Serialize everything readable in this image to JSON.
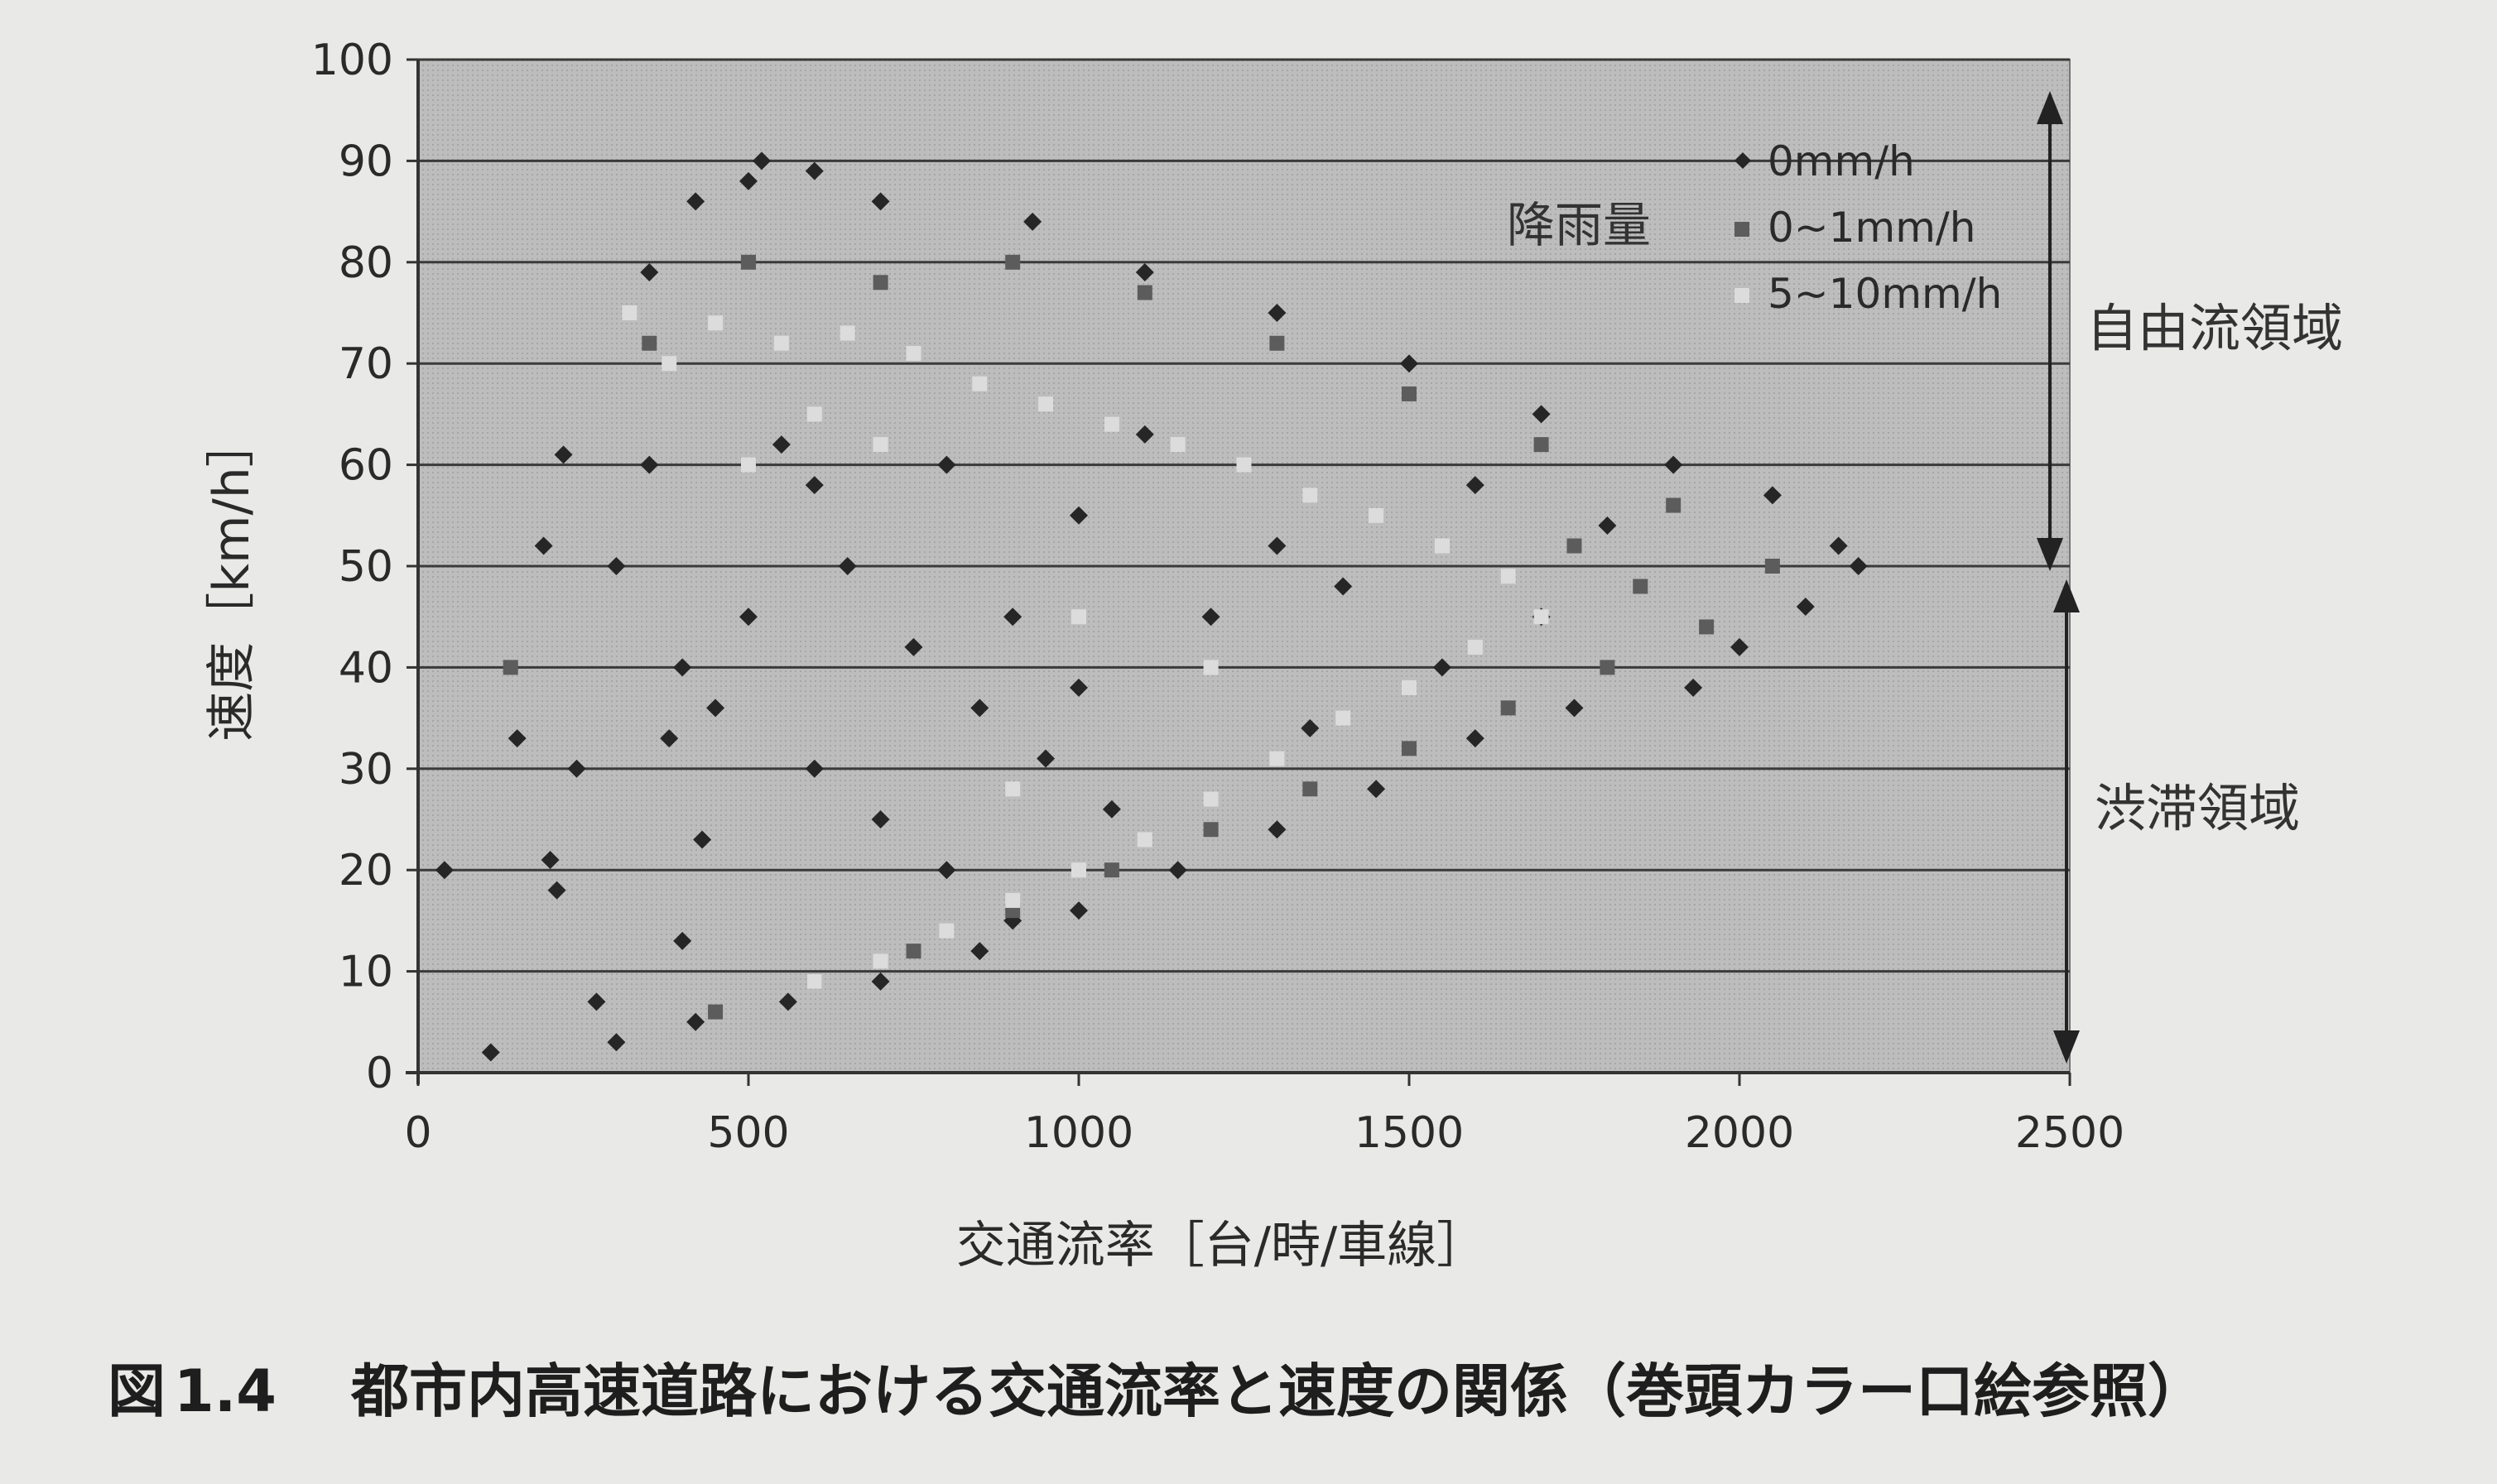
{
  "chart_data": {
    "type": "scatter",
    "xlabel": "交通流率［台/時/車線］",
    "ylabel": "速度［km/h］",
    "xlim": [
      0,
      2500
    ],
    "ylim": [
      0,
      100
    ],
    "x_ticks": [
      "0",
      "500",
      "1000",
      "1500",
      "2000",
      "2500"
    ],
    "y_ticks": [
      "0",
      "10",
      "20",
      "30",
      "40",
      "50",
      "60",
      "70",
      "80",
      "90",
      "100"
    ],
    "grid": "horizontal",
    "legend_title": "降雨量",
    "legend_position": "top-right",
    "series": [
      {
        "name": "0mm/h",
        "color": "#262626",
        "marker": "diamond",
        "points": [
          [
            40,
            20
          ],
          [
            110,
            2
          ],
          [
            150,
            33
          ],
          [
            190,
            52
          ],
          [
            200,
            21
          ],
          [
            210,
            18
          ],
          [
            220,
            61
          ],
          [
            240,
            30
          ],
          [
            270,
            7
          ],
          [
            350,
            79
          ],
          [
            420,
            86
          ],
          [
            500,
            88
          ],
          [
            520,
            90
          ],
          [
            600,
            89
          ],
          [
            700,
            86
          ],
          [
            930,
            84
          ],
          [
            1100,
            79
          ],
          [
            1300,
            75
          ],
          [
            1500,
            70
          ],
          [
            1700,
            65
          ],
          [
            1900,
            60
          ],
          [
            2050,
            57
          ],
          [
            2150,
            52
          ],
          [
            2180,
            50
          ],
          [
            2100,
            46
          ],
          [
            2000,
            42
          ],
          [
            1930,
            38
          ],
          [
            1750,
            36
          ],
          [
            1600,
            33
          ],
          [
            1450,
            28
          ],
          [
            1300,
            24
          ],
          [
            1150,
            20
          ],
          [
            1000,
            16
          ],
          [
            850,
            12
          ],
          [
            700,
            9
          ],
          [
            560,
            7
          ],
          [
            420,
            5
          ],
          [
            300,
            3
          ],
          [
            400,
            40
          ],
          [
            450,
            36
          ],
          [
            380,
            33
          ],
          [
            500,
            45
          ],
          [
            600,
            30
          ],
          [
            700,
            25
          ],
          [
            800,
            20
          ],
          [
            900,
            15
          ],
          [
            550,
            62
          ],
          [
            650,
            50
          ],
          [
            750,
            42
          ],
          [
            850,
            36
          ],
          [
            950,
            31
          ],
          [
            1050,
            26
          ],
          [
            1200,
            45
          ],
          [
            1400,
            48
          ],
          [
            430,
            23
          ],
          [
            400,
            13
          ],
          [
            350,
            60
          ],
          [
            300,
            50
          ],
          [
            600,
            58
          ],
          [
            800,
            60
          ],
          [
            1000,
            55
          ],
          [
            1100,
            63
          ],
          [
            1300,
            52
          ],
          [
            1600,
            58
          ],
          [
            1800,
            54
          ],
          [
            1700,
            45
          ],
          [
            1550,
            40
          ],
          [
            1350,
            34
          ],
          [
            900,
            45
          ],
          [
            1000,
            38
          ]
        ]
      },
      {
        "name": "0~1mm/h",
        "color": "#5c5c5c",
        "marker": "square",
        "points": [
          [
            140,
            40
          ],
          [
            900,
            80
          ],
          [
            1100,
            77
          ],
          [
            1300,
            72
          ],
          [
            1500,
            67
          ],
          [
            1700,
            62
          ],
          [
            1900,
            56
          ],
          [
            2050,
            50
          ],
          [
            1950,
            44
          ],
          [
            1800,
            40
          ],
          [
            1650,
            36
          ],
          [
            1500,
            32
          ],
          [
            1350,
            28
          ],
          [
            1200,
            24
          ],
          [
            1050,
            20
          ],
          [
            900,
            16
          ],
          [
            750,
            12
          ],
          [
            600,
            9
          ],
          [
            450,
            6
          ],
          [
            500,
            80
          ],
          [
            700,
            78
          ],
          [
            350,
            72
          ],
          [
            1850,
            48
          ],
          [
            1750,
            52
          ]
        ]
      },
      {
        "name": "5~10mm/h",
        "color": "#dcdcdc",
        "marker": "square",
        "points": [
          [
            320,
            75
          ],
          [
            380,
            70
          ],
          [
            450,
            74
          ],
          [
            550,
            72
          ],
          [
            650,
            73
          ],
          [
            750,
            71
          ],
          [
            850,
            68
          ],
          [
            950,
            66
          ],
          [
            1050,
            64
          ],
          [
            1150,
            62
          ],
          [
            1250,
            60
          ],
          [
            1350,
            57
          ],
          [
            1450,
            55
          ],
          [
            1550,
            52
          ],
          [
            1650,
            49
          ],
          [
            1700,
            45
          ],
          [
            1600,
            42
          ],
          [
            1500,
            38
          ],
          [
            1400,
            35
          ],
          [
            1300,
            31
          ],
          [
            1200,
            27
          ],
          [
            1100,
            23
          ],
          [
            1000,
            20
          ],
          [
            900,
            17
          ],
          [
            800,
            14
          ],
          [
            700,
            11
          ],
          [
            600,
            9
          ],
          [
            500,
            60
          ],
          [
            600,
            65
          ],
          [
            700,
            62
          ],
          [
            1000,
            45
          ],
          [
            1200,
            40
          ],
          [
            900,
            28
          ]
        ]
      }
    ],
    "annotations": [
      {
        "text": "自由流領域",
        "y_range": [
          50,
          96
        ]
      },
      {
        "text": "渋滞領域",
        "y_range": [
          0,
          48
        ]
      }
    ]
  },
  "caption": {
    "label": "図",
    "number": "1.4",
    "text": "都市内高速道路における交通流率と速度の関係（巻頭カラー口絵参照）"
  }
}
